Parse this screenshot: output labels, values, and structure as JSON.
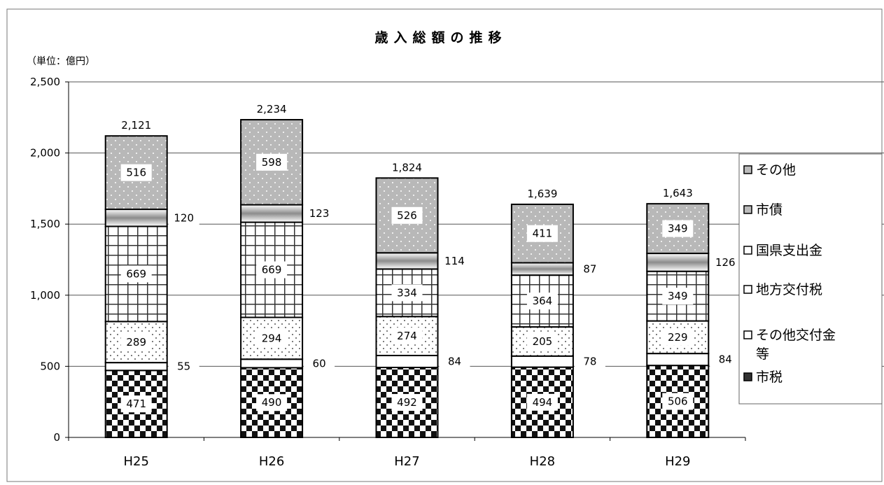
{
  "chart_data": {
    "type": "bar",
    "stacked": true,
    "title": "歳入総額の推移",
    "unit_label": "（単位：億円）",
    "categories": [
      "H25",
      "H26",
      "H27",
      "H28",
      "H29"
    ],
    "ylim": [
      0,
      2500
    ],
    "yticks": [
      "0",
      "500",
      "1,000",
      "1,500",
      "2,000",
      "2,500"
    ],
    "ytick_values": [
      0,
      500,
      1000,
      1500,
      2000,
      2500
    ],
    "grid": true,
    "legend_position": "right",
    "totals": [
      "2,121",
      "2,234",
      "1,824",
      "1,639",
      "1,643"
    ],
    "total_values": [
      2121,
      2234,
      1824,
      1639,
      1643
    ],
    "series": [
      {
        "name": "市税",
        "values": [
          471,
          490,
          492,
          494,
          506
        ],
        "pattern": "checker"
      },
      {
        "name": "その他交付金等",
        "values": [
          55,
          60,
          84,
          78,
          84
        ],
        "pattern": "white"
      },
      {
        "name": "地方交付税",
        "values": [
          289,
          294,
          274,
          205,
          229
        ],
        "pattern": "dots-white"
      },
      {
        "name": "国県支出金",
        "values": [
          669,
          669,
          334,
          364,
          349
        ],
        "pattern": "grid"
      },
      {
        "name": "市債",
        "values": [
          120,
          123,
          114,
          87,
          126
        ],
        "pattern": "gradient"
      },
      {
        "name": "その他",
        "values": [
          516,
          598,
          526,
          411,
          349
        ],
        "pattern": "dots-gray"
      }
    ],
    "legend_order": [
      "その他",
      "市債",
      "国県支出金",
      "地方交付税",
      "その他交付金等",
      "市税"
    ]
  }
}
